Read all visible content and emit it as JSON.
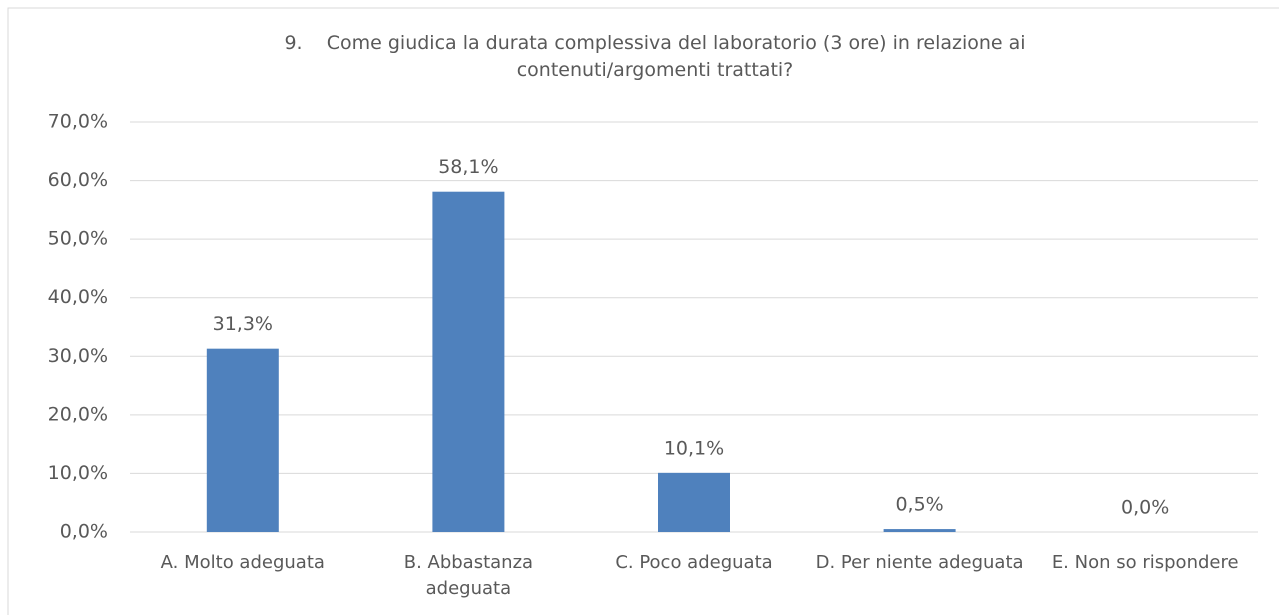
{
  "chart_data": {
    "type": "bar",
    "title": "9.    Come giudica la durata complessiva del laboratorio (3 ore) in relazione ai contenuti/argomenti trattati?",
    "categories": [
      "A. Molto adeguata",
      "B. Abbastanza adeguata",
      "C. Poco adeguata",
      "D. Per niente adeguata",
      "E. Non so rispondere"
    ],
    "values": [
      31.3,
      58.1,
      10.1,
      0.5,
      0.0
    ],
    "value_labels": [
      "31,3%",
      "58,1%",
      "10,1%",
      "0,5%",
      "0,0%"
    ],
    "color": "#4f81bd",
    "ylim": [
      0,
      70
    ],
    "yticks": [
      {
        "value": 0,
        "label": "0,0%"
      },
      {
        "value": 10,
        "label": "10,0%"
      },
      {
        "value": 20,
        "label": "20,0%"
      },
      {
        "value": 30,
        "label": "30,0%"
      },
      {
        "value": 40,
        "label": "40,0%"
      },
      {
        "value": 50,
        "label": "50,0%"
      },
      {
        "value": 60,
        "label": "60,0%"
      },
      {
        "value": 70,
        "label": "70,0%"
      }
    ],
    "grid": true
  }
}
